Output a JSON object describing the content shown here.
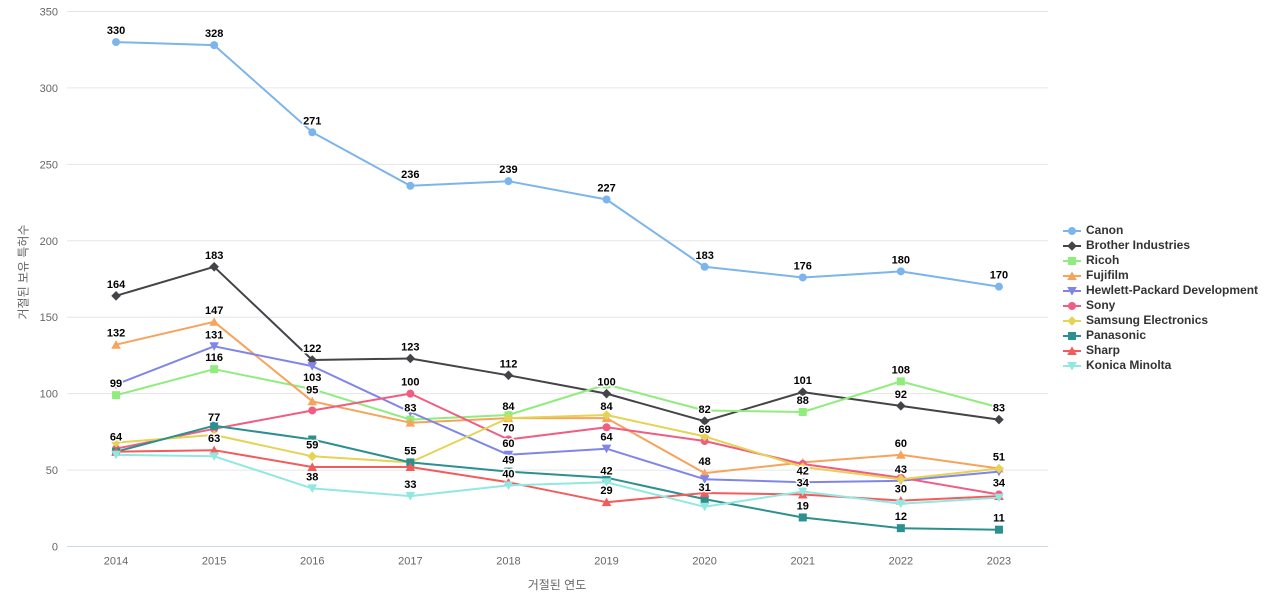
{
  "chart_data": {
    "type": "line",
    "title": "",
    "xlabel": "거절된 연도",
    "ylabel": "거절된 보유 특허수",
    "categories": [
      "2014",
      "2015",
      "2016",
      "2017",
      "2018",
      "2019",
      "2020",
      "2021",
      "2022",
      "2023"
    ],
    "ylim": [
      0,
      350
    ],
    "yticks": [
      0,
      50,
      100,
      150,
      200,
      250,
      300,
      350
    ],
    "grid": "horizontal",
    "legend_position": "right",
    "series": [
      {
        "name": "Canon",
        "color": "#7cb5ec",
        "symbol": "circle",
        "values": [
          330,
          328,
          271,
          236,
          239,
          227,
          183,
          176,
          180,
          170
        ],
        "labels": [
          "330",
          "328",
          "271",
          "236",
          "239",
          "227",
          "183",
          "176",
          "180",
          "170"
        ]
      },
      {
        "name": "Brother Industries",
        "color": "#434348",
        "symbol": "diamond",
        "values": [
          164,
          183,
          122,
          123,
          112,
          100,
          82,
          101,
          92,
          83
        ],
        "labels": [
          "164",
          "183",
          "122",
          "123",
          "112",
          "100",
          "82",
          "101",
          "92",
          "83"
        ]
      },
      {
        "name": "Ricoh",
        "color": "#90ed7d",
        "symbol": "square",
        "values": [
          99,
          116,
          103,
          83,
          86,
          106,
          89,
          88,
          108,
          91
        ],
        "labels": [
          "99",
          "116",
          "103",
          "83",
          null,
          null,
          null,
          "88",
          "108",
          null
        ]
      },
      {
        "name": "Fujifilm",
        "color": "#f7a35c",
        "symbol": "triangle",
        "values": [
          132,
          147,
          95,
          81,
          84,
          84,
          48,
          55,
          60,
          51
        ],
        "labels": [
          "132",
          "147",
          "95",
          null,
          "84",
          "84",
          "48",
          null,
          "60",
          "51"
        ]
      },
      {
        "name": "Hewlett-Packard Development",
        "color": "#8085e9",
        "symbol": "triangle-down",
        "values": [
          106,
          131,
          118,
          88,
          60,
          64,
          44,
          42,
          43,
          49
        ],
        "labels": [
          null,
          "131",
          null,
          null,
          "60",
          "64",
          null,
          "42",
          "43",
          null
        ]
      },
      {
        "name": "Sony",
        "color": "#f15c80",
        "symbol": "circle",
        "values": [
          64,
          77,
          89,
          100,
          70,
          78,
          69,
          54,
          45,
          34
        ],
        "labels": [
          "64",
          "77",
          null,
          "100",
          "70",
          null,
          "69",
          null,
          null,
          "34"
        ]
      },
      {
        "name": "Samsung Electronics",
        "color": "#e4d354",
        "symbol": "diamond",
        "values": [
          68,
          73,
          59,
          55,
          84,
          86,
          72,
          52,
          44,
          51
        ],
        "labels": [
          null,
          null,
          "59",
          "55",
          null,
          null,
          null,
          null,
          null,
          null
        ]
      },
      {
        "name": "Panasonic",
        "color": "#2b908f",
        "symbol": "square",
        "values": [
          62,
          79,
          70,
          55,
          49,
          45,
          31,
          19,
          12,
          11
        ],
        "labels": [
          null,
          null,
          null,
          null,
          "49",
          null,
          "31",
          "19",
          "12",
          "11"
        ]
      },
      {
        "name": "Sharp",
        "color": "#f45b5b",
        "symbol": "triangle",
        "values": [
          62,
          63,
          52,
          52,
          42,
          29,
          35,
          34,
          30,
          33
        ],
        "labels": [
          null,
          "63",
          null,
          null,
          null,
          "29",
          null,
          "34",
          "30",
          null
        ]
      },
      {
        "name": "Konica Minolta",
        "color": "#91e8e1",
        "symbol": "triangle-down",
        "values": [
          60,
          59,
          38,
          33,
          40,
          42,
          26,
          36,
          28,
          32
        ],
        "labels": [
          null,
          null,
          "38",
          "33",
          "40",
          "42",
          null,
          null,
          null,
          null
        ]
      }
    ]
  },
  "styles": {
    "grid_color": "#e6e6e6",
    "axis_line_color": "#ccd6eb",
    "tick_label_color": "#666666",
    "axis_title_color": "#666666",
    "legend_text_color": "#333333",
    "data_label_color": "#000000",
    "background": "#ffffff"
  }
}
